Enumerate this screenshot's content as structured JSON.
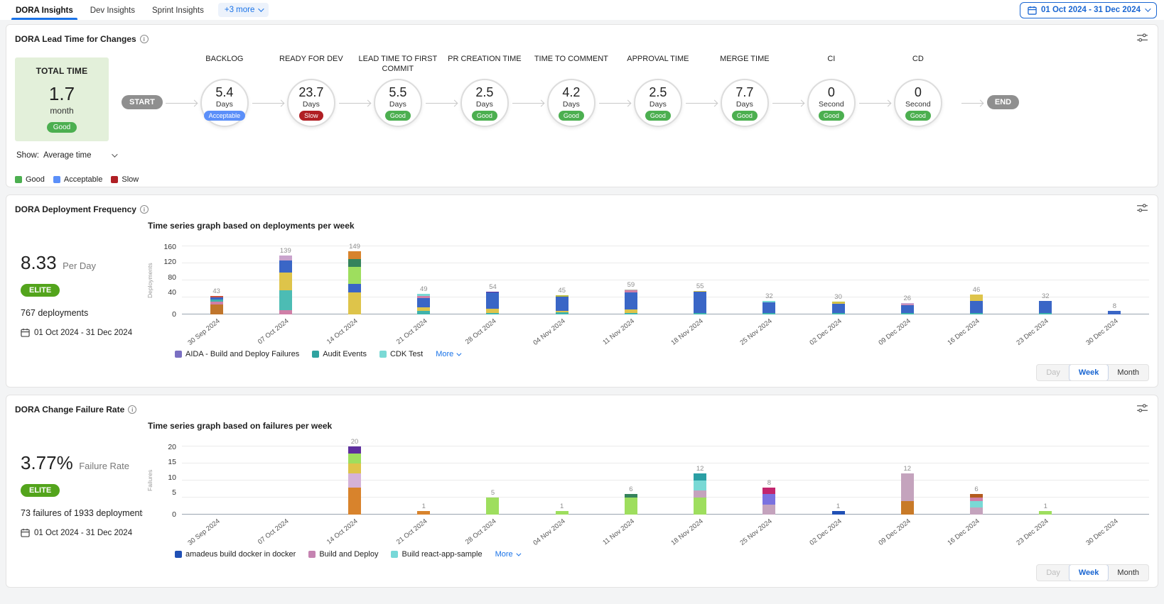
{
  "nav": {
    "tabs": [
      {
        "label": "DORA Insights",
        "active": true
      },
      {
        "label": "Dev Insights",
        "active": false
      },
      {
        "label": "Sprint Insights",
        "active": false
      }
    ],
    "more_label": "+3 more",
    "date_range": "01 Oct 2024 - 31 Dec 2024"
  },
  "lead_time": {
    "title": "DORA Lead Time for Changes",
    "total_card": {
      "heading": "TOTAL TIME",
      "value": "1.7",
      "unit": "month",
      "status": "Good"
    },
    "show_label": "Show:",
    "show_value": "Average time",
    "start_label": "START",
    "end_label": "END",
    "status_colors": {
      "Good": "#4caf50",
      "Acceptable": "#5b8ff9",
      "Slow": "#b01f24"
    },
    "legend": [
      {
        "label": "Good",
        "color": "#4caf50"
      },
      {
        "label": "Acceptable",
        "color": "#5b8ff9"
      },
      {
        "label": "Slow",
        "color": "#b01f24"
      }
    ],
    "stages": [
      {
        "name": "BACKLOG",
        "value": "5.4",
        "unit": "Days",
        "status": "Acceptable"
      },
      {
        "name": "READY FOR DEV",
        "value": "23.7",
        "unit": "Days",
        "status": "Slow"
      },
      {
        "name": "LEAD TIME TO FIRST COMMIT",
        "value": "5.5",
        "unit": "Days",
        "status": "Good"
      },
      {
        "name": "PR CREATION TIME",
        "value": "2.5",
        "unit": "Days",
        "status": "Good"
      },
      {
        "name": "TIME TO COMMENT",
        "value": "4.2",
        "unit": "Days",
        "status": "Good"
      },
      {
        "name": "APPROVAL TIME",
        "value": "2.5",
        "unit": "Days",
        "status": "Good"
      },
      {
        "name": "MERGE TIME",
        "value": "7.7",
        "unit": "Days",
        "status": "Good"
      },
      {
        "name": "CI",
        "value": "0",
        "unit": "Second",
        "status": "Good"
      },
      {
        "name": "CD",
        "value": "0",
        "unit": "Second",
        "status": "Good"
      }
    ]
  },
  "deployment": {
    "title": "DORA Deployment Frequency",
    "subtitle": "Time series graph based on deployments per week",
    "rate_value": "8.33",
    "rate_unit": "Per Day",
    "badge": "ELITE",
    "count_text": "767 deployments",
    "date_range": "01 Oct 2024 - 31 Dec 2024",
    "more_label": "More",
    "legend": [
      {
        "label": "AIDA - Build and Deploy Failures",
        "color": "#7a6fc2"
      },
      {
        "label": "Audit Events",
        "color": "#2fa3a0"
      },
      {
        "label": "CDK Test",
        "color": "#7ad9d5"
      }
    ],
    "toggle": [
      "Day",
      "Week",
      "Month"
    ],
    "toggle_active": "Week"
  },
  "failure": {
    "title": "DORA Change Failure Rate",
    "subtitle": "Time series graph based on failures per week",
    "rate_value": "3.77%",
    "rate_unit": "Failure Rate",
    "badge": "ELITE",
    "count_text": "73 failures of 1933 deployments",
    "date_range": "01 Oct 2024 - 31 Dec 2024",
    "more_label": "More",
    "legend": [
      {
        "label": "amadeus build docker in docker",
        "color": "#2050b5"
      },
      {
        "label": "Build and Deploy",
        "color": "#c583b1"
      },
      {
        "label": "Build react-app-sample",
        "color": "#77d8d8"
      }
    ],
    "toggle": [
      "Day",
      "Week",
      "Month"
    ],
    "toggle_active": "Week"
  },
  "chart_data": [
    {
      "type": "stacked-bar",
      "id": "deployments",
      "title": "Time series graph based on deployments per week",
      "ylabel": "Deployments",
      "ylim": [
        0,
        160
      ],
      "yticks": [
        0,
        40,
        80,
        120,
        160
      ],
      "grid": true,
      "categories": [
        "30 Sep 2024",
        "07 Oct 2024",
        "14 Oct 2024",
        "21 Oct 2024",
        "28 Oct 2024",
        "04 Nov 2024",
        "11 Nov 2024",
        "18 Nov 2024",
        "25 Nov 2024",
        "02 Dec 2024",
        "09 Dec 2024",
        "16 Dec 2024",
        "23 Dec 2024",
        "30 Dec 2024"
      ],
      "totals": [
        43,
        139,
        149,
        49,
        54,
        45,
        59,
        55,
        32,
        30,
        26,
        46,
        32,
        8
      ],
      "bars": [
        {
          "label": "30 Sep 2024",
          "total": 43,
          "segments": [
            [
              "#c0762c",
              23
            ],
            [
              "#cf7fa7",
              7
            ],
            [
              "#3fb3ac",
              5
            ],
            [
              "#3a66c6",
              5
            ],
            [
              "#cc4f3f",
              3
            ]
          ]
        },
        {
          "label": "07 Oct 2024",
          "total": 139,
          "segments": [
            [
              "#cf7fa7",
              10
            ],
            [
              "#4cbcb4",
              47
            ],
            [
              "#dec44a",
              42
            ],
            [
              "#3a66c6",
              28
            ],
            [
              "#c9a3cd",
              12
            ]
          ]
        },
        {
          "label": "14 Oct 2024",
          "total": 149,
          "segments": [
            [
              "#dec44a",
              52
            ],
            [
              "#3a66c6",
              20
            ],
            [
              "#9ede5e",
              40
            ],
            [
              "#35835c",
              18
            ],
            [
              "#d8832c",
              19
            ]
          ]
        },
        {
          "label": "21 Oct 2024",
          "total": 49,
          "segments": [
            [
              "#3fb3ac",
              8
            ],
            [
              "#dec44a",
              9
            ],
            [
              "#3a66c6",
              21
            ],
            [
              "#cf7fa7",
              5
            ],
            [
              "#79d9d5",
              6
            ]
          ]
        },
        {
          "label": "28 Oct 2024",
          "total": 54,
          "segments": [
            [
              "#3fb3ac",
              4
            ],
            [
              "#dec44a",
              9
            ],
            [
              "#3a66c6",
              38
            ],
            [
              "#5e2f9e",
              3
            ]
          ]
        },
        {
          "label": "04 Nov 2024",
          "total": 45,
          "segments": [
            [
              "#3fb3ac",
              5
            ],
            [
              "#dec44a",
              3
            ],
            [
              "#3a66c6",
              33
            ],
            [
              "#b8bc3e",
              4
            ]
          ]
        },
        {
          "label": "11 Nov 2024",
          "total": 59,
          "segments": [
            [
              "#3fb3ac",
              4
            ],
            [
              "#dec44a",
              8
            ],
            [
              "#3a66c6",
              39
            ],
            [
              "#cf7fa7",
              5
            ],
            [
              "#b9b2a8",
              3
            ]
          ]
        },
        {
          "label": "18 Nov 2024",
          "total": 55,
          "segments": [
            [
              "#3fb3ac",
              3
            ],
            [
              "#3a66c6",
              51
            ],
            [
              "#dec44a",
              1
            ]
          ]
        },
        {
          "label": "25 Nov 2024",
          "total": 32,
          "segments": [
            [
              "#3fb3ac",
              4
            ],
            [
              "#3a66c6",
              25
            ],
            [
              "#79d9d5",
              3
            ]
          ]
        },
        {
          "label": "02 Dec 2024",
          "total": 30,
          "segments": [
            [
              "#3fb3ac",
              4
            ],
            [
              "#3a66c6",
              21
            ],
            [
              "#dec44a",
              3
            ],
            [
              "#b8bc3e",
              2
            ]
          ]
        },
        {
          "label": "09 Dec 2024",
          "total": 26,
          "segments": [
            [
              "#3fb3ac",
              4
            ],
            [
              "#3a66c6",
              18
            ],
            [
              "#cf7fa7",
              2
            ],
            [
              "#c9a3cd",
              2
            ]
          ]
        },
        {
          "label": "16 Dec 2024",
          "total": 46,
          "segments": [
            [
              "#3fb3ac",
              4
            ],
            [
              "#3a66c6",
              27
            ],
            [
              "#dec44a",
              15
            ]
          ]
        },
        {
          "label": "23 Dec 2024",
          "total": 32,
          "segments": [
            [
              "#3fb3ac",
              3
            ],
            [
              "#3a66c6",
              29
            ]
          ]
        },
        {
          "label": "30 Dec 2024",
          "total": 8,
          "segments": [
            [
              "#3a66c6",
              8
            ]
          ]
        }
      ]
    },
    {
      "type": "stacked-bar",
      "id": "failures",
      "title": "Time series graph based on failures per week",
      "ylabel": "Failures",
      "ylim": [
        0,
        20
      ],
      "yticks": [
        0,
        5,
        10,
        15,
        20
      ],
      "grid": true,
      "categories": [
        "30 Sep 2024",
        "07 Oct 2024",
        "14 Oct 2024",
        "21 Oct 2024",
        "28 Oct 2024",
        "04 Nov 2024",
        "11 Nov 2024",
        "18 Nov 2024",
        "25 Nov 2024",
        "02 Dec 2024",
        "09 Dec 2024",
        "16 Dec 2024",
        "23 Dec 2024",
        "30 Dec 2024"
      ],
      "totals": [
        0,
        0,
        20,
        1,
        5,
        1,
        6,
        12,
        8,
        1,
        12,
        6,
        1,
        0
      ],
      "bars": [
        {
          "label": "30 Sep 2024",
          "total": 0,
          "segments": []
        },
        {
          "label": "07 Oct 2024",
          "total": 0,
          "segments": []
        },
        {
          "label": "14 Oct 2024",
          "total": 20,
          "segments": [
            [
              "#d8832c",
              8
            ],
            [
              "#d4b2d8",
              4
            ],
            [
              "#dec44a",
              3
            ],
            [
              "#9ede5e",
              3
            ],
            [
              "#5e2f9e",
              2
            ]
          ]
        },
        {
          "label": "21 Oct 2024",
          "total": 1,
          "segments": [
            [
              "#d8832c",
              1
            ]
          ]
        },
        {
          "label": "28 Oct 2024",
          "total": 5,
          "segments": [
            [
              "#9ede5e",
              5
            ]
          ]
        },
        {
          "label": "04 Nov 2024",
          "total": 1,
          "segments": [
            [
              "#9ede5e",
              1
            ]
          ]
        },
        {
          "label": "11 Nov 2024",
          "total": 6,
          "segments": [
            [
              "#9ede5e",
              5
            ],
            [
              "#35835c",
              1
            ]
          ]
        },
        {
          "label": "18 Nov 2024",
          "total": 12,
          "segments": [
            [
              "#9ede5e",
              5
            ],
            [
              "#c4a3bd",
              2
            ],
            [
              "#79d9d5",
              3
            ],
            [
              "#2a9fa4",
              2
            ]
          ]
        },
        {
          "label": "25 Nov 2024",
          "total": 8,
          "segments": [
            [
              "#c4a3bd",
              3
            ],
            [
              "#7a72e0",
              3
            ],
            [
              "#c2266e",
              2
            ]
          ]
        },
        {
          "label": "02 Dec 2024",
          "total": 1,
          "segments": [
            [
              "#2050b5",
              1
            ]
          ]
        },
        {
          "label": "09 Dec 2024",
          "total": 12,
          "segments": [
            [
              "#c87a28",
              4
            ],
            [
              "#c4a3bd",
              8
            ]
          ]
        },
        {
          "label": "16 Dec 2024",
          "total": 6,
          "segments": [
            [
              "#c4a3bd",
              2
            ],
            [
              "#79d9d5",
              2
            ],
            [
              "#cf7fa7",
              1
            ],
            [
              "#b35c1e",
              1
            ]
          ]
        },
        {
          "label": "23 Dec 2024",
          "total": 1,
          "segments": [
            [
              "#9ede5e",
              1
            ]
          ]
        },
        {
          "label": "30 Dec 2024",
          "total": 0,
          "segments": []
        }
      ]
    }
  ]
}
